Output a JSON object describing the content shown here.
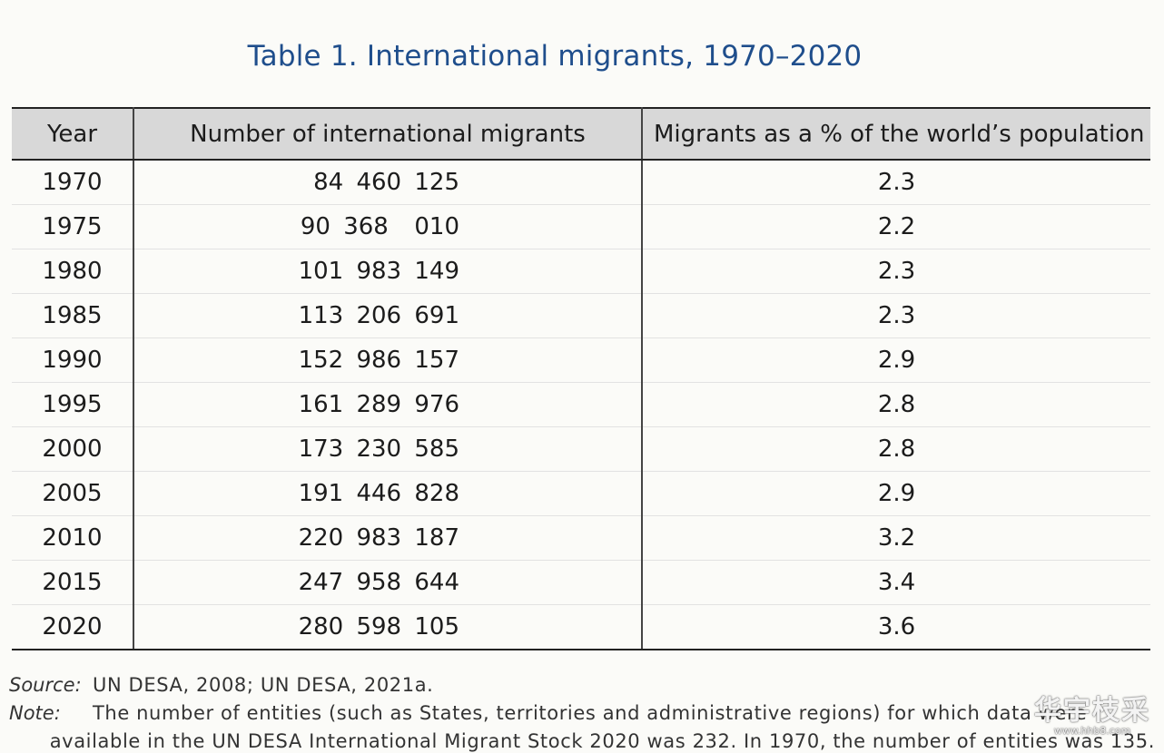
{
  "title": "Table 1. International migrants, 1970–2020",
  "table": {
    "headers": [
      "Year",
      "Number of international migrants",
      "Migrants as a % of the world’s population"
    ],
    "rows": [
      {
        "year": "1970",
        "migrants": "84 460 125",
        "percent": "2.3"
      },
      {
        "year": "1975",
        "migrants": "90 368  010",
        "percent": "2.2"
      },
      {
        "year": "1980",
        "migrants": "101 983 149",
        "percent": "2.3"
      },
      {
        "year": "1985",
        "migrants": "113 206 691",
        "percent": "2.3"
      },
      {
        "year": "1990",
        "migrants": "152 986 157",
        "percent": "2.9"
      },
      {
        "year": "1995",
        "migrants": "161 289 976",
        "percent": "2.8"
      },
      {
        "year": "2000",
        "migrants": "173 230 585",
        "percent": "2.8"
      },
      {
        "year": "2005",
        "migrants": "191 446 828",
        "percent": "2.9"
      },
      {
        "year": "2010",
        "migrants": "220 983 187",
        "percent": "3.2"
      },
      {
        "year": "2015",
        "migrants": "247 958 644",
        "percent": "3.4"
      },
      {
        "year": "2020",
        "migrants": "280 598 105",
        "percent": "3.6"
      }
    ]
  },
  "source": {
    "label": "Source:",
    "text": "UN DESA, 2008; UN DESA, 2021a."
  },
  "note": {
    "label": "Note:",
    "line1": "The number of entities (such as States, territories and administrative regions) for which data were",
    "line2": "available in the UN DESA International Migrant Stock 2020 was 232. In 1970, the number of entities was 135."
  },
  "watermark": {
    "main": "华宇枝采",
    "url": "www.hhb8.com"
  },
  "colors": {
    "title": "#1f4e8c",
    "header_background": "#d8d8d8",
    "rule": "#222222"
  }
}
